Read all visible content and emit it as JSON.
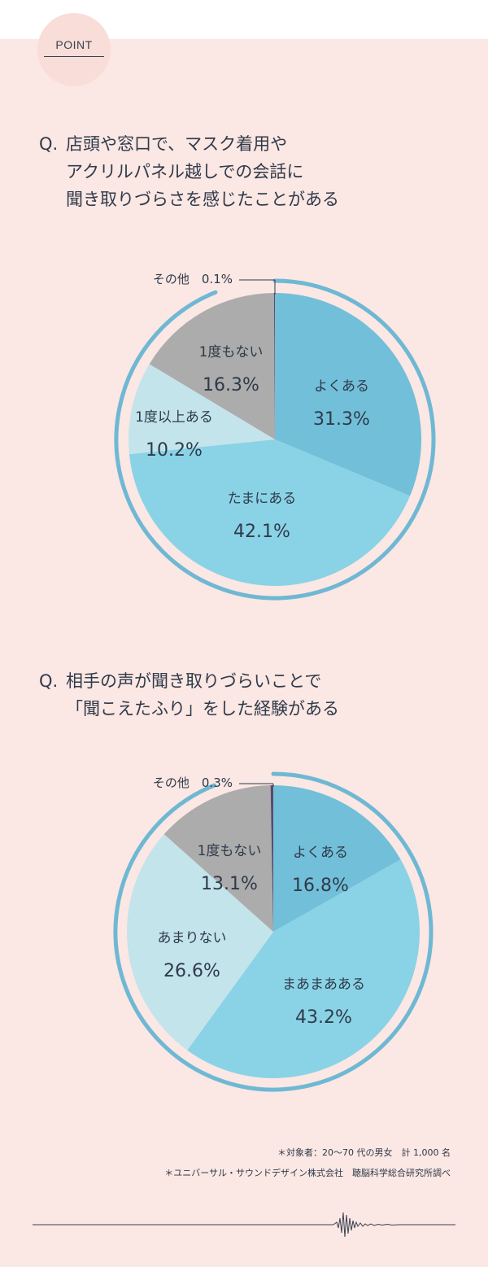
{
  "badge": "POINT",
  "questions": [
    {
      "mark": "Q.",
      "lines": [
        "店頭や窓口で、マスク着用や",
        "アクリルパネル越しでの会話に",
        "聞き取りづらさを感じたことがある"
      ]
    },
    {
      "mark": "Q.",
      "lines": [
        "相手の声が聞き取りづらいことで",
        "「聞こえたふり」をした経験がある"
      ]
    }
  ],
  "colors": {
    "background": "#fbe7e3",
    "ring": "#6fb8d4",
    "slice_yoku": "#72bfd9",
    "slice_tama": "#8ad3e6",
    "slice_ijou": "#c3e4eb",
    "slice_nai": "#acacac",
    "slice_sonota": "#5b4a6b"
  },
  "chart_data": [
    {
      "type": "pie",
      "title": "店頭や窓口で、マスク着用やアクリルパネル越しでの会話に聞き取りづらさを感じたことがある",
      "slices": [
        {
          "label": "よくある",
          "value": 31.3,
          "value_label": "31.3%",
          "color": "#72bfd9"
        },
        {
          "label": "たまにある",
          "value": 42.1,
          "value_label": "42.1%",
          "color": "#8ad3e6"
        },
        {
          "label": "1度以上ある",
          "value": 10.2,
          "value_label": "10.2%",
          "color": "#c3e4eb"
        },
        {
          "label": "1度もない",
          "value": 16.3,
          "value_label": "16.3%",
          "color": "#acacac"
        },
        {
          "label": "その他",
          "value": 0.1,
          "value_label": "0.1%",
          "color": "#5b4a6b"
        }
      ]
    },
    {
      "type": "pie",
      "title": "相手の声が聞き取りづらいことで「聞こえたふり」をした経験がある",
      "slices": [
        {
          "label": "よくある",
          "value": 16.8,
          "value_label": "16.8%",
          "color": "#72bfd9"
        },
        {
          "label": "まあまあある",
          "value": 43.2,
          "value_label": "43.2%",
          "color": "#8ad3e6"
        },
        {
          "label": "あまりない",
          "value": 26.6,
          "value_label": "26.6%",
          "color": "#c3e4eb"
        },
        {
          "label": "1度もない",
          "value": 13.1,
          "value_label": "13.1%",
          "color": "#acacac"
        },
        {
          "label": "その他",
          "value": 0.3,
          "value_label": "0.3%",
          "color": "#5b4a6b"
        }
      ]
    }
  ],
  "notes": [
    "＊対象者：20〜70 代の男女　計 1,000 名",
    "＊ユニバーサル・サウンドデザイン株式会社　聴脳科学総合研究所調べ"
  ]
}
